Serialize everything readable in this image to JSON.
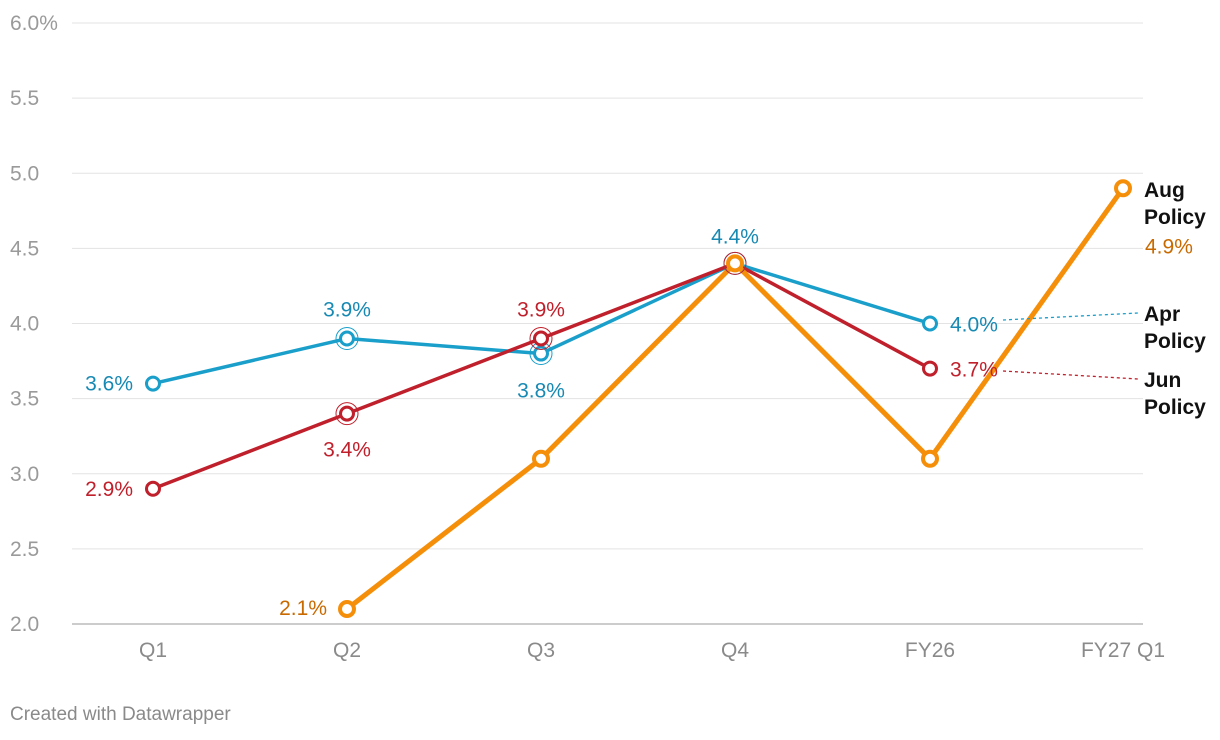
{
  "chart_data": {
    "type": "line",
    "categories": [
      "Q1",
      "Q2",
      "Q3",
      "Q4",
      "FY26",
      "FY27 Q1"
    ],
    "yticks": [
      "2.0",
      "2.5",
      "3.0",
      "3.5",
      "4.0",
      "4.5",
      "5.0",
      "5.5",
      "6.0%"
    ],
    "ylim": [
      2.0,
      6.0
    ],
    "series": [
      {
        "name": "Apr Policy",
        "name_lines": [
          "Apr",
          "Policy"
        ],
        "color": "#1a9fcb",
        "label_color": "#1789b3",
        "values": [
          3.6,
          3.9,
          3.8,
          4.4,
          4.0,
          null
        ],
        "labels": [
          "3.6%",
          "3.9%",
          "3.8%",
          "4.4%",
          "4.0%",
          null
        ]
      },
      {
        "name": "Jun Policy",
        "name_lines": [
          "Jun",
          "Policy"
        ],
        "color": "#c0202b",
        "label_color": "#c0202b",
        "values": [
          2.9,
          3.4,
          3.9,
          4.4,
          3.7,
          null
        ],
        "labels": [
          "2.9%",
          "3.4%",
          "3.9%",
          null,
          "3.7%",
          null
        ]
      },
      {
        "name": "Aug Policy",
        "name_lines": [
          "Aug",
          "Policy"
        ],
        "color": "#f58f0a",
        "label_color": "#c96a00",
        "values": [
          null,
          2.1,
          3.1,
          4.4,
          3.1,
          4.9
        ],
        "labels": [
          null,
          "2.1%",
          null,
          null,
          null,
          "4.9%"
        ]
      }
    ]
  },
  "footer": {
    "credit": "Created with Datawrapper"
  }
}
